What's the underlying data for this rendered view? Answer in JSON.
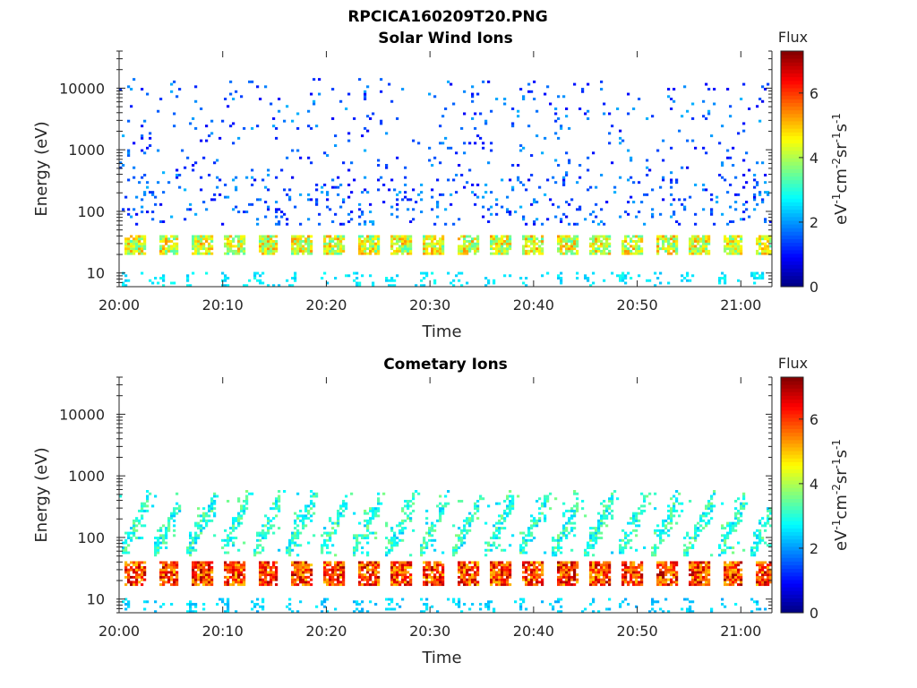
{
  "figure": {
    "title": "RPCICA160209T20.PNG"
  },
  "chart_data": [
    {
      "type": "heatmap",
      "title": "Solar Wind Ions",
      "xlabel": "Time",
      "ylabel": "Energy (eV)",
      "x_ticks": [
        "20:00",
        "20:10",
        "20:20",
        "20:30",
        "20:40",
        "20:50",
        "21:00"
      ],
      "xlim": [
        "20:00",
        "21:03"
      ],
      "y_scale": "log",
      "y_ticks": [
        "10",
        "100",
        "1000",
        "10000"
      ],
      "ylim": [
        6,
        40000
      ],
      "colorbar": {
        "title": "Flux",
        "label": "eV-1cm-2sr-1s-1",
        "ticks": [
          "0",
          "2",
          "4",
          "6"
        ],
        "range": [
          0,
          7.3
        ],
        "colormap": "jet"
      },
      "sweep_period_min": 3.2,
      "bands": [
        {
          "name": "main",
          "energy_eV": [
            20,
            40
          ],
          "level": 4.3
        },
        {
          "name": "low",
          "energy_eV": [
            6,
            10
          ],
          "level": 2.6
        },
        {
          "name": "scatter",
          "energy_eV": [
            60,
            15000
          ],
          "level": 1.8
        }
      ]
    },
    {
      "type": "heatmap",
      "title": "Cometary Ions",
      "xlabel": "Time",
      "ylabel": "Energy (eV)",
      "x_ticks": [
        "20:00",
        "20:10",
        "20:20",
        "20:30",
        "20:40",
        "20:50",
        "21:00"
      ],
      "xlim": [
        "20:00",
        "21:03"
      ],
      "y_scale": "log",
      "y_ticks": [
        "10",
        "100",
        "1000",
        "10000"
      ],
      "ylim": [
        6,
        40000
      ],
      "colorbar": {
        "title": "Flux",
        "label": "eV-1cm-2sr-1s-1",
        "ticks": [
          "0",
          "2",
          "4",
          "6"
        ],
        "range": [
          0,
          7.3
        ],
        "colormap": "jet"
      },
      "sweep_period_min": 3.2,
      "bands": [
        {
          "name": "main",
          "energy_eV": [
            16,
            42
          ],
          "level": 6.0
        },
        {
          "name": "streak",
          "energy_eV": [
            50,
            600
          ],
          "level": 3.0
        },
        {
          "name": "low",
          "energy_eV": [
            6,
            10
          ],
          "level": 2.4
        }
      ]
    }
  ]
}
